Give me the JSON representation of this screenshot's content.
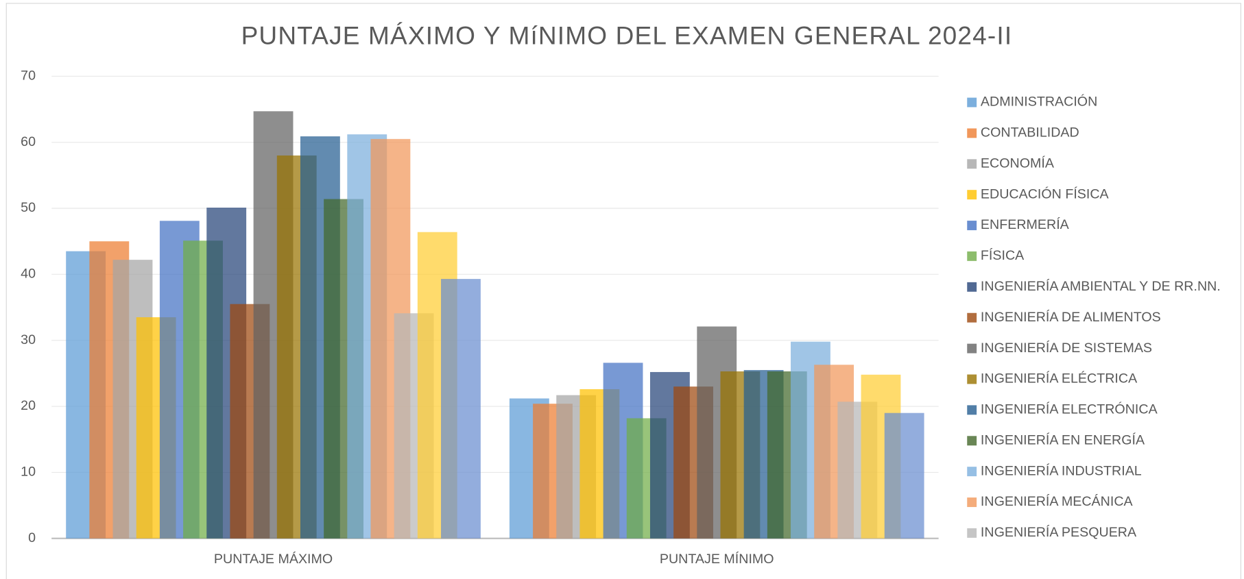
{
  "chart_data": {
    "type": "bar",
    "title": "PUNTAJE MÁXIMO Y MíNIMO DEL EXAMEN GENERAL 2024-II",
    "categories": [
      "PUNTAJE MÁXIMO",
      "PUNTAJE MÍNIMO"
    ],
    "ylim": [
      0,
      70
    ],
    "yticks": [
      0,
      10,
      20,
      30,
      40,
      50,
      60,
      70
    ],
    "grid": true,
    "legend": "right",
    "series": [
      {
        "name": "ADMINISTRACIÓN",
        "color": "#5b9bd5",
        "values": [
          43.5,
          21.2
        ]
      },
      {
        "name": "CONTABILIDAD",
        "color": "#ed7d31",
        "values": [
          45,
          20.4
        ]
      },
      {
        "name": "ECONOMÍA",
        "color": "#a5a5a5",
        "values": [
          42.2,
          21.7
        ]
      },
      {
        "name": "EDUCACIÓN FÍSICA",
        "color": "#ffc000",
        "values": [
          33.5,
          22.6
        ]
      },
      {
        "name": "ENFERMERÍA",
        "color": "#4472c4",
        "values": [
          48.1,
          26.6
        ]
      },
      {
        "name": "FÍSICA",
        "color": "#70ad47",
        "values": [
          45.1,
          18.2
        ]
      },
      {
        "name": "INGENIERÍA AMBIENTAL Y DE RR.NN.",
        "color": "#264478",
        "values": [
          50.1,
          25.2
        ]
      },
      {
        "name": "INGENIERÍA DE ALIMENTOS",
        "color": "#9e480e",
        "values": [
          35.5,
          23
        ]
      },
      {
        "name": "INGENIERÍA DE SISTEMAS",
        "color": "#636363",
        "values": [
          64.7,
          32.1
        ]
      },
      {
        "name": "INGENIERÍA ELÉCTRICA",
        "color": "#997300",
        "values": [
          58,
          25.3
        ]
      },
      {
        "name": "INGENIERÍA ELECTRÓNICA",
        "color": "#255e91",
        "values": [
          60.9,
          25.5
        ]
      },
      {
        "name": "INGENIERÍA EN ENERGÍA",
        "color": "#43682b",
        "values": [
          51.4,
          25.3
        ]
      },
      {
        "name": "INGENIERÍA INDUSTRIAL",
        "color": "#7cafdd",
        "values": [
          61.2,
          29.8
        ]
      },
      {
        "name": "INGENIERÍA MECÁNICA",
        "color": "#f1975a",
        "values": [
          60.5,
          26.3
        ]
      },
      {
        "name": "INGENIERÍA PESQUERA",
        "color": "#b7b7b7",
        "values": [
          34.1,
          20.7
        ]
      },
      {
        "color": "#ffcd33",
        "values": [
          46.4,
          24.8
        ]
      },
      {
        "color": "#698ed0",
        "values": [
          39.3,
          19
        ]
      }
    ]
  }
}
